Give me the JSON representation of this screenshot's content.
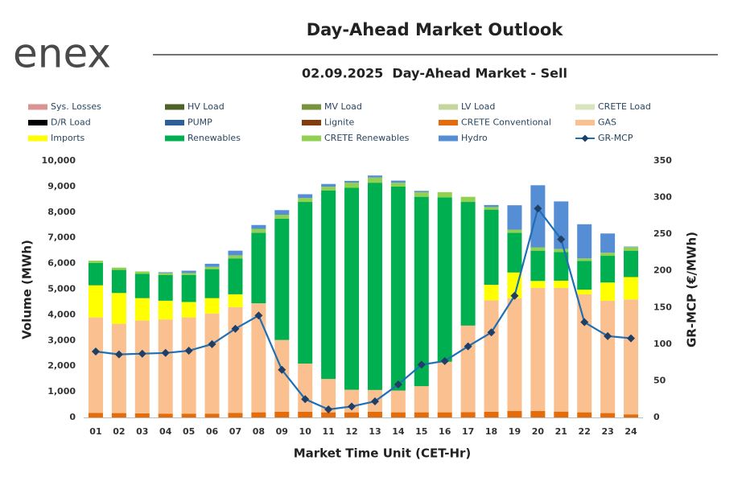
{
  "logo": "enex",
  "chart_data": {
    "type": "bar",
    "stacked": true,
    "title": "Day-Ahead Market Outlook",
    "subtitle": "02.09.2025  Day-Ahead Market - Sell",
    "x_label": "Market Time Unit (CET-Hr)",
    "y_label": "Volume (MWh)",
    "y2_label": "GR-MCP (€/MWh)",
    "categories": [
      "01",
      "02",
      "03",
      "04",
      "05",
      "06",
      "07",
      "08",
      "09",
      "10",
      "11",
      "12",
      "13",
      "14",
      "15",
      "16",
      "17",
      "18",
      "19",
      "20",
      "21",
      "22",
      "23",
      "24"
    ],
    "ylim": [
      0,
      10000
    ],
    "yticks": [
      0,
      {
        "value": 1000,
        "label": "1,000"
      },
      {
        "value": 2000,
        "label": "2,000"
      },
      {
        "value": 3000,
        "label": "3,000"
      },
      {
        "value": 4000,
        "label": "4,000"
      },
      {
        "value": 5000,
        "label": "5,000"
      },
      {
        "value": 6000,
        "label": "6,000"
      },
      {
        "value": 7000,
        "label": "7,000"
      },
      {
        "value": 8000,
        "label": "8,000"
      },
      {
        "value": 9000,
        "label": "9,000"
      },
      {
        "value": 10000,
        "label": "10,000"
      }
    ],
    "y2lim": [
      0,
      350
    ],
    "y2ticks": [
      0,
      50,
      100,
      150,
      200,
      250,
      300,
      350
    ],
    "grid": false,
    "legend": "top",
    "series": [
      {
        "name": "Sys. Losses",
        "color": "#d99594",
        "values": [
          0,
          0,
          0,
          0,
          0,
          0,
          0,
          0,
          0,
          0,
          0,
          0,
          0,
          0,
          0,
          0,
          0,
          0,
          0,
          0,
          0,
          0,
          0,
          0
        ]
      },
      {
        "name": "HV Load",
        "color": "#4f6228",
        "values": [
          0,
          0,
          0,
          0,
          0,
          0,
          0,
          0,
          0,
          0,
          0,
          0,
          0,
          0,
          0,
          0,
          0,
          0,
          0,
          0,
          0,
          0,
          0,
          0
        ]
      },
      {
        "name": "MV Load",
        "color": "#77933c",
        "values": [
          0,
          0,
          0,
          0,
          0,
          0,
          0,
          0,
          0,
          0,
          0,
          0,
          0,
          0,
          0,
          0,
          0,
          0,
          0,
          0,
          0,
          0,
          0,
          0
        ]
      },
      {
        "name": "LV Load",
        "color": "#c3d69b",
        "values": [
          0,
          0,
          0,
          0,
          0,
          0,
          0,
          0,
          0,
          0,
          0,
          0,
          0,
          0,
          0,
          0,
          0,
          0,
          0,
          0,
          0,
          0,
          0,
          0
        ]
      },
      {
        "name": "CRETE Load",
        "color": "#d7e4bd",
        "values": [
          0,
          0,
          0,
          0,
          0,
          0,
          0,
          0,
          0,
          0,
          0,
          0,
          0,
          0,
          0,
          0,
          0,
          0,
          0,
          0,
          0,
          0,
          0,
          0
        ]
      },
      {
        "name": "D/R Load",
        "color": "#000000",
        "values": [
          0,
          0,
          0,
          0,
          0,
          0,
          0,
          0,
          0,
          0,
          0,
          0,
          0,
          0,
          0,
          0,
          0,
          0,
          0,
          0,
          0,
          0,
          0,
          0
        ]
      },
      {
        "name": "PUMP",
        "color": "#2e5f9a",
        "values": [
          0,
          0,
          0,
          0,
          0,
          0,
          0,
          0,
          0,
          0,
          0,
          0,
          0,
          0,
          0,
          0,
          0,
          0,
          0,
          0,
          0,
          0,
          0,
          0
        ]
      },
      {
        "name": "Lignite",
        "color": "#843c0c",
        "values": [
          0,
          0,
          0,
          0,
          0,
          0,
          0,
          0,
          0,
          0,
          0,
          0,
          0,
          0,
          0,
          0,
          0,
          0,
          0,
          0,
          0,
          0,
          0,
          0
        ]
      },
      {
        "name": "CRETE Conventional",
        "color": "#e46c0a",
        "values": [
          180,
          170,
          160,
          150,
          150,
          150,
          180,
          200,
          220,
          220,
          200,
          200,
          220,
          200,
          200,
          200,
          210,
          220,
          250,
          250,
          230,
          200,
          170,
          120
        ]
      },
      {
        "name": "GAS",
        "color": "#fac090",
        "values": [
          3720,
          3480,
          3620,
          3670,
          3750,
          3900,
          4120,
          4250,
          2800,
          1880,
          1300,
          880,
          850,
          850,
          1020,
          1970,
          3370,
          4350,
          4400,
          4800,
          4820,
          4600,
          4380,
          4480
        ]
      },
      {
        "name": "Imports",
        "color": "#ffff00",
        "values": [
          1250,
          1200,
          870,
          730,
          600,
          600,
          500,
          0,
          0,
          0,
          0,
          0,
          0,
          0,
          0,
          0,
          0,
          600,
          1000,
          270,
          280,
          180,
          710,
          870
        ]
      },
      {
        "name": "Renewables",
        "color": "#00b050",
        "values": [
          870,
          900,
          950,
          1000,
          1050,
          1130,
          1400,
          2750,
          4730,
          6300,
          7350,
          7870,
          8080,
          7950,
          7380,
          6410,
          4820,
          2930,
          1550,
          1180,
          1120,
          1120,
          1040,
          1030
        ]
      },
      {
        "name": "CRETE Renewables",
        "color": "#92d050",
        "values": [
          90,
          90,
          90,
          80,
          80,
          90,
          120,
          150,
          150,
          150,
          140,
          200,
          200,
          150,
          180,
          200,
          200,
          100,
          120,
          130,
          120,
          100,
          120,
          140
        ]
      },
      {
        "name": "Hydro",
        "color": "#558ed5",
        "values": [
          0,
          0,
          0,
          30,
          90,
          120,
          180,
          150,
          180,
          150,
          110,
          70,
          80,
          80,
          50,
          0,
          0,
          80,
          950,
          2420,
          1850,
          1330,
          750,
          20
        ]
      },
      {
        "name": "GR-MCP",
        "color": "#1f6fb5",
        "type": "line",
        "axis": "y2",
        "values": [
          90,
          86,
          87,
          88,
          91,
          100,
          121,
          139,
          65,
          25,
          11,
          15,
          22,
          45,
          72,
          77,
          97,
          116,
          166,
          285,
          243,
          130,
          111,
          108
        ]
      }
    ]
  }
}
